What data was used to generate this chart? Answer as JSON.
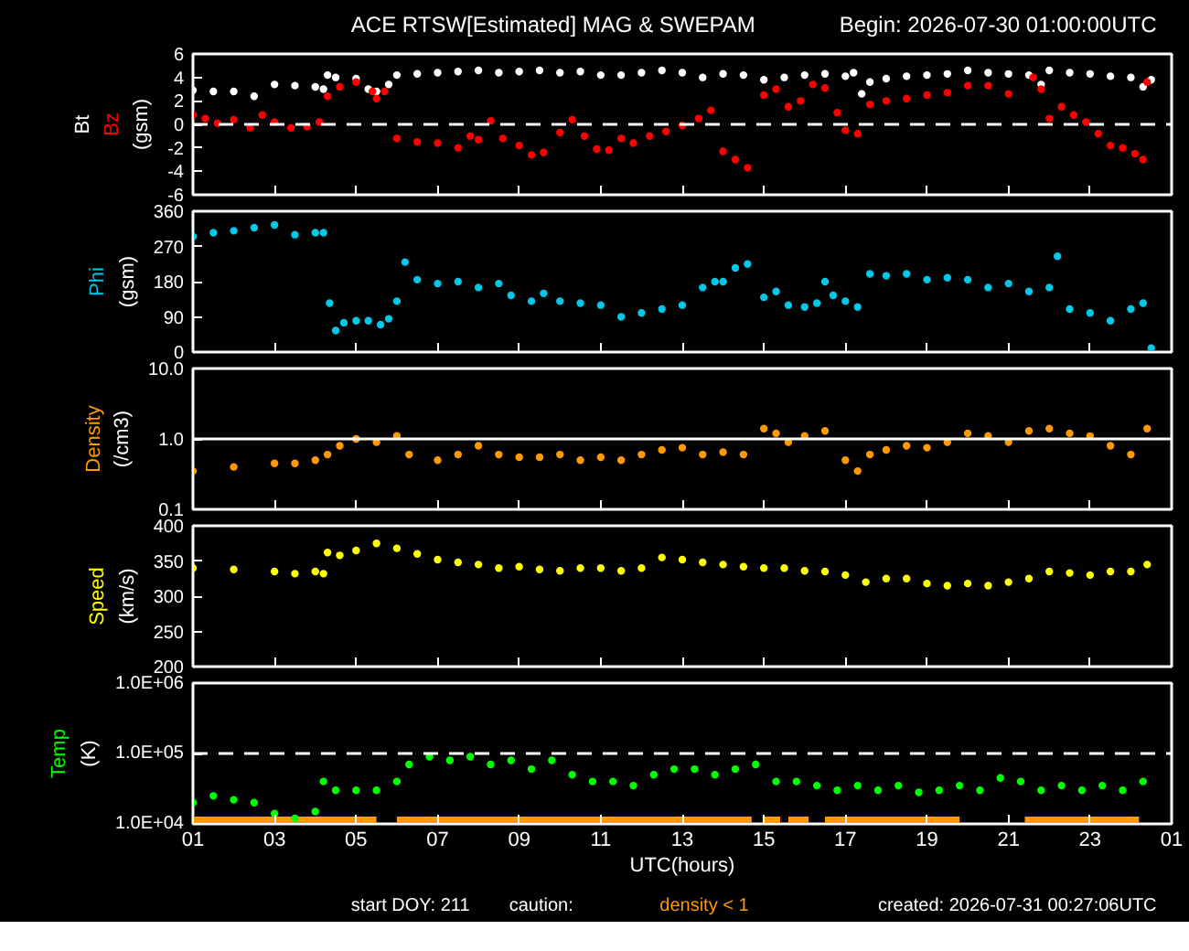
{
  "chart_data": [
    {
      "type": "scatter",
      "title": "ACE RTSW[Estimated] MAG & SWEPAM",
      "subtitle": "Begin: 2026-07-30 01:00:00UTC",
      "ylabel": "(gsm)",
      "marker": "circle",
      "tick_labels": "y",
      "xlim": [
        "2026-07-30T01:00",
        "2026-07-31T01:00"
      ],
      "xticks": [
        {
          "value": "2026-07-30T01:00",
          "label": null
        },
        {
          "value": "2026-07-30T03:00",
          "label": null
        },
        {
          "value": "2026-07-30T05:00",
          "label": null
        },
        {
          "value": "2026-07-30T07:00",
          "label": null
        },
        {
          "value": "2026-07-30T09:00",
          "label": null
        },
        {
          "value": "2026-07-30T11:00",
          "label": null
        },
        {
          "value": "2026-07-30T13:00",
          "label": null
        },
        {
          "value": "2026-07-30T15:00",
          "label": null
        },
        {
          "value": "2026-07-30T17:00",
          "label": null
        },
        {
          "value": "2026-07-30T19:00",
          "label": null
        },
        {
          "value": "2026-07-30T21:00",
          "label": null
        },
        {
          "value": "2026-07-30T23:00",
          "label": null
        },
        {
          "value": "2026-07-31T01:00",
          "label": null
        }
      ],
      "ylim": [
        -6,
        6
      ],
      "yticks": [
        -6,
        -4,
        -2,
        0,
        2,
        4,
        6
      ],
      "ref_lines": [
        {
          "axis": "y",
          "value": 0,
          "label": null,
          "color": "#ffffff",
          "line_style": "dashed"
        }
      ],
      "series": [
        {
          "name": "Bt",
          "color": "#ffffff",
          "x": [
            "2026-07-30T01:00",
            "2026-07-30T01:30",
            "2026-07-30T02:00",
            "2026-07-30T02:30",
            "2026-07-30T03:00",
            "2026-07-30T03:30",
            "2026-07-30T04:00",
            "2026-07-30T04:12",
            "2026-07-30T04:18",
            "2026-07-30T04:30",
            "2026-07-30T05:00",
            "2026-07-30T05:18",
            "2026-07-30T05:30",
            "2026-07-30T05:48",
            "2026-07-30T06:00",
            "2026-07-30T06:30",
            "2026-07-30T07:00",
            "2026-07-30T07:30",
            "2026-07-30T08:00",
            "2026-07-30T08:30",
            "2026-07-30T09:00",
            "2026-07-30T09:30",
            "2026-07-30T10:00",
            "2026-07-30T10:30",
            "2026-07-30T11:00",
            "2026-07-30T11:30",
            "2026-07-30T12:00",
            "2026-07-30T12:30",
            "2026-07-30T13:00",
            "2026-07-30T13:30",
            "2026-07-30T14:00",
            "2026-07-30T14:30",
            "2026-07-30T15:00",
            "2026-07-30T15:30",
            "2026-07-30T16:00",
            "2026-07-30T16:30",
            "2026-07-30T17:00",
            "2026-07-30T17:12",
            "2026-07-30T17:24",
            "2026-07-30T17:36",
            "2026-07-30T18:00",
            "2026-07-30T18:30",
            "2026-07-30T19:00",
            "2026-07-30T19:30",
            "2026-07-30T20:00",
            "2026-07-30T20:30",
            "2026-07-30T21:00",
            "2026-07-30T21:30",
            "2026-07-30T21:48",
            "2026-07-30T22:00",
            "2026-07-30T22:30",
            "2026-07-30T23:00",
            "2026-07-30T23:30",
            "2026-07-31T00:00",
            "2026-07-31T00:18",
            "2026-07-31T00:30"
          ],
          "values": [
            2.9,
            2.8,
            2.8,
            2.4,
            3.4,
            3.3,
            3.2,
            3.0,
            4.2,
            4.0,
            3.9,
            3.0,
            2.8,
            3.4,
            4.2,
            4.3,
            4.4,
            4.5,
            4.6,
            4.4,
            4.5,
            4.6,
            4.4,
            4.5,
            4.2,
            4.2,
            4.4,
            4.6,
            4.4,
            4.0,
            4.3,
            4.2,
            3.8,
            4.0,
            4.2,
            4.3,
            4.1,
            4.4,
            2.6,
            3.6,
            3.9,
            4.1,
            4.2,
            4.3,
            4.6,
            4.4,
            4.3,
            4.2,
            3.4,
            4.6,
            4.4,
            4.3,
            4.1,
            4.0,
            3.2,
            3.8
          ]
        },
        {
          "name": "Bz",
          "color": "#ff0000",
          "x": [
            "2026-07-30T01:00",
            "2026-07-30T01:18",
            "2026-07-30T01:36",
            "2026-07-30T02:00",
            "2026-07-30T02:24",
            "2026-07-30T02:42",
            "2026-07-30T03:00",
            "2026-07-30T03:24",
            "2026-07-30T03:48",
            "2026-07-30T04:06",
            "2026-07-30T04:18",
            "2026-07-30T04:36",
            "2026-07-30T05:00",
            "2026-07-30T05:24",
            "2026-07-30T05:30",
            "2026-07-30T05:42",
            "2026-07-30T06:00",
            "2026-07-30T06:30",
            "2026-07-30T07:00",
            "2026-07-30T07:30",
            "2026-07-30T07:48",
            "2026-07-30T08:00",
            "2026-07-30T08:18",
            "2026-07-30T08:36",
            "2026-07-30T09:00",
            "2026-07-30T09:18",
            "2026-07-30T09:36",
            "2026-07-30T10:00",
            "2026-07-30T10:18",
            "2026-07-30T10:36",
            "2026-07-30T10:54",
            "2026-07-30T11:12",
            "2026-07-30T11:30",
            "2026-07-30T11:48",
            "2026-07-30T12:12",
            "2026-07-30T12:36",
            "2026-07-30T13:00",
            "2026-07-30T13:24",
            "2026-07-30T13:42",
            "2026-07-30T14:00",
            "2026-07-30T14:18",
            "2026-07-30T14:36",
            "2026-07-30T15:00",
            "2026-07-30T15:18",
            "2026-07-30T15:36",
            "2026-07-30T15:54",
            "2026-07-30T16:12",
            "2026-07-30T16:30",
            "2026-07-30T16:48",
            "2026-07-30T17:00",
            "2026-07-30T17:18",
            "2026-07-30T17:36",
            "2026-07-30T18:00",
            "2026-07-30T18:30",
            "2026-07-30T19:00",
            "2026-07-30T19:30",
            "2026-07-30T20:00",
            "2026-07-30T20:30",
            "2026-07-30T21:00",
            "2026-07-30T21:36",
            "2026-07-30T21:48",
            "2026-07-30T22:00",
            "2026-07-30T22:18",
            "2026-07-30T22:36",
            "2026-07-30T22:54",
            "2026-07-30T23:12",
            "2026-07-30T23:30",
            "2026-07-30T23:48",
            "2026-07-31T00:06",
            "2026-07-31T00:18",
            "2026-07-31T00:24"
          ],
          "values": [
            0.8,
            0.5,
            0.1,
            0.4,
            -0.3,
            0.8,
            0.2,
            -0.3,
            -0.2,
            0.2,
            2.4,
            3.2,
            3.6,
            2.8,
            2.2,
            2.8,
            -1.2,
            -1.5,
            -1.6,
            -2.0,
            -1.0,
            -1.3,
            0.3,
            -1.2,
            -1.8,
            -2.6,
            -2.4,
            -0.7,
            0.4,
            -1.0,
            -2.1,
            -2.2,
            -1.2,
            -1.6,
            -1.0,
            -0.6,
            -0.1,
            0.5,
            1.2,
            -2.3,
            -3.0,
            -3.7,
            2.5,
            3.0,
            1.5,
            2.0,
            3.4,
            3.1,
            1.0,
            -0.5,
            -0.8,
            1.7,
            2.0,
            2.2,
            2.5,
            2.7,
            3.3,
            3.3,
            2.6,
            4.0,
            3.0,
            0.5,
            1.5,
            0.8,
            0.2,
            -0.8,
            -1.8,
            -2.0,
            -2.5,
            -3.0,
            3.6
          ]
        }
      ]
    },
    {
      "type": "scatter",
      "ylabel": "(gsm)",
      "marker": "circle",
      "tick_labels": "y",
      "xlim": [
        "2026-07-30T01:00",
        "2026-07-31T01:00"
      ],
      "xticks": [
        {
          "value": "2026-07-30T01:00",
          "label": null
        },
        {
          "value": "2026-07-30T03:00",
          "label": null
        },
        {
          "value": "2026-07-30T05:00",
          "label": null
        },
        {
          "value": "2026-07-30T07:00",
          "label": null
        },
        {
          "value": "2026-07-30T09:00",
          "label": null
        },
        {
          "value": "2026-07-30T11:00",
          "label": null
        },
        {
          "value": "2026-07-30T13:00",
          "label": null
        },
        {
          "value": "2026-07-30T15:00",
          "label": null
        },
        {
          "value": "2026-07-30T17:00",
          "label": null
        },
        {
          "value": "2026-07-30T19:00",
          "label": null
        },
        {
          "value": "2026-07-30T21:00",
          "label": null
        },
        {
          "value": "2026-07-30T23:00",
          "label": null
        },
        {
          "value": "2026-07-31T01:00",
          "label": null
        }
      ],
      "ylim": [
        0,
        360
      ],
      "yticks": [
        0,
        90,
        180,
        270,
        360
      ],
      "series": [
        {
          "name": "Phi",
          "color": "#00c8e6",
          "x": [
            "2026-07-30T01:00",
            "2026-07-30T01:30",
            "2026-07-30T02:00",
            "2026-07-30T02:30",
            "2026-07-30T03:00",
            "2026-07-30T03:30",
            "2026-07-30T04:00",
            "2026-07-30T04:12",
            "2026-07-30T04:21",
            "2026-07-30T04:30",
            "2026-07-30T04:42",
            "2026-07-30T05:00",
            "2026-07-30T05:18",
            "2026-07-30T05:36",
            "2026-07-30T05:48",
            "2026-07-30T06:00",
            "2026-07-30T06:12",
            "2026-07-30T06:30",
            "2026-07-30T07:00",
            "2026-07-30T07:30",
            "2026-07-30T08:00",
            "2026-07-30T08:30",
            "2026-07-30T08:48",
            "2026-07-30T09:18",
            "2026-07-30T09:36",
            "2026-07-30T10:00",
            "2026-07-30T10:30",
            "2026-07-30T11:00",
            "2026-07-30T11:30",
            "2026-07-30T12:00",
            "2026-07-30T12:30",
            "2026-07-30T13:00",
            "2026-07-30T13:30",
            "2026-07-30T13:48",
            "2026-07-30T14:00",
            "2026-07-30T14:18",
            "2026-07-30T14:36",
            "2026-07-30T15:00",
            "2026-07-30T15:18",
            "2026-07-30T15:36",
            "2026-07-30T16:00",
            "2026-07-30T16:18",
            "2026-07-30T16:30",
            "2026-07-30T16:42",
            "2026-07-30T17:00",
            "2026-07-30T17:18",
            "2026-07-30T17:36",
            "2026-07-30T18:00",
            "2026-07-30T18:30",
            "2026-07-30T19:00",
            "2026-07-30T19:30",
            "2026-07-30T20:00",
            "2026-07-30T20:30",
            "2026-07-30T21:00",
            "2026-07-30T21:30",
            "2026-07-30T22:00",
            "2026-07-30T22:12",
            "2026-07-30T22:30",
            "2026-07-30T23:00",
            "2026-07-30T23:30",
            "2026-07-31T00:00",
            "2026-07-31T00:18",
            "2026-07-31T00:30"
          ],
          "values": [
            295,
            305,
            310,
            318,
            325,
            300,
            305,
            305,
            125,
            55,
            75,
            80,
            80,
            70,
            85,
            130,
            230,
            185,
            175,
            180,
            165,
            175,
            145,
            130,
            150,
            130,
            125,
            120,
            90,
            100,
            110,
            120,
            165,
            180,
            180,
            215,
            225,
            140,
            155,
            120,
            115,
            125,
            180,
            145,
            130,
            115,
            200,
            195,
            200,
            185,
            190,
            185,
            165,
            175,
            155,
            165,
            245,
            110,
            100,
            80,
            110,
            125,
            10
          ]
        }
      ]
    },
    {
      "type": "scatter",
      "ylabel": "(/cm3)",
      "marker": "circle",
      "tick_labels": "y",
      "log": "y",
      "xlim": [
        "2026-07-30T01:00",
        "2026-07-31T01:00"
      ],
      "xticks": [
        {
          "value": "2026-07-30T01:00",
          "label": null
        },
        {
          "value": "2026-07-30T03:00",
          "label": null
        },
        {
          "value": "2026-07-30T05:00",
          "label": null
        },
        {
          "value": "2026-07-30T07:00",
          "label": null
        },
        {
          "value": "2026-07-30T09:00",
          "label": null
        },
        {
          "value": "2026-07-30T11:00",
          "label": null
        },
        {
          "value": "2026-07-30T13:00",
          "label": null
        },
        {
          "value": "2026-07-30T15:00",
          "label": null
        },
        {
          "value": "2026-07-30T17:00",
          "label": null
        },
        {
          "value": "2026-07-30T19:00",
          "label": null
        },
        {
          "value": "2026-07-30T21:00",
          "label": null
        },
        {
          "value": "2026-07-30T23:00",
          "label": null
        },
        {
          "value": "2026-07-31T01:00",
          "label": null
        }
      ],
      "ylim": [
        0.1,
        10
      ],
      "yticks": [
        {
          "value": 0.1,
          "label": "0.1"
        },
        {
          "value": 1,
          "label": "1.0"
        },
        {
          "value": 10,
          "label": "10.0"
        }
      ],
      "ref_lines": [
        {
          "axis": "y",
          "value": 1,
          "label": null,
          "color": "#ffffff",
          "line_style": "solid"
        }
      ],
      "series": [
        {
          "name": "Density",
          "color": "#ff9900",
          "x": [
            "2026-07-30T01:00",
            "2026-07-30T02:00",
            "2026-07-30T03:00",
            "2026-07-30T03:30",
            "2026-07-30T04:00",
            "2026-07-30T04:18",
            "2026-07-30T04:36",
            "2026-07-30T05:00",
            "2026-07-30T05:30",
            "2026-07-30T06:00",
            "2026-07-30T06:18",
            "2026-07-30T07:00",
            "2026-07-30T07:30",
            "2026-07-30T08:00",
            "2026-07-30T08:30",
            "2026-07-30T09:00",
            "2026-07-30T09:30",
            "2026-07-30T10:00",
            "2026-07-30T10:30",
            "2026-07-30T11:00",
            "2026-07-30T11:30",
            "2026-07-30T12:00",
            "2026-07-30T12:30",
            "2026-07-30T13:00",
            "2026-07-30T13:30",
            "2026-07-30T14:00",
            "2026-07-30T14:30",
            "2026-07-30T15:00",
            "2026-07-30T15:18",
            "2026-07-30T15:36",
            "2026-07-30T16:00",
            "2026-07-30T16:30",
            "2026-07-30T17:00",
            "2026-07-30T17:18",
            "2026-07-30T17:36",
            "2026-07-30T18:00",
            "2026-07-30T18:30",
            "2026-07-30T19:00",
            "2026-07-30T19:30",
            "2026-07-30T20:00",
            "2026-07-30T20:30",
            "2026-07-30T21:00",
            "2026-07-30T21:30",
            "2026-07-30T22:00",
            "2026-07-30T22:30",
            "2026-07-30T23:00",
            "2026-07-30T23:30",
            "2026-07-31T00:00",
            "2026-07-31T00:24"
          ],
          "values": [
            0.35,
            0.4,
            0.45,
            0.45,
            0.5,
            0.6,
            0.8,
            1.0,
            0.9,
            1.1,
            0.6,
            0.5,
            0.6,
            0.8,
            0.6,
            0.55,
            0.55,
            0.6,
            0.5,
            0.55,
            0.5,
            0.6,
            0.7,
            0.75,
            0.6,
            0.65,
            0.6,
            1.4,
            1.2,
            0.9,
            1.1,
            1.3,
            0.5,
            0.35,
            0.6,
            0.7,
            0.8,
            0.75,
            0.9,
            1.2,
            1.1,
            0.9,
            1.3,
            1.4,
            1.2,
            1.1,
            0.8,
            0.6,
            1.4
          ]
        }
      ]
    },
    {
      "type": "scatter",
      "ylabel": "(km/s)",
      "marker": "circle",
      "tick_labels": "y",
      "xlim": [
        "2026-07-30T01:00",
        "2026-07-31T01:00"
      ],
      "xticks": [
        {
          "value": "2026-07-30T01:00",
          "label": null
        },
        {
          "value": "2026-07-30T03:00",
          "label": null
        },
        {
          "value": "2026-07-30T05:00",
          "label": null
        },
        {
          "value": "2026-07-30T07:00",
          "label": null
        },
        {
          "value": "2026-07-30T09:00",
          "label": null
        },
        {
          "value": "2026-07-30T11:00",
          "label": null
        },
        {
          "value": "2026-07-30T13:00",
          "label": null
        },
        {
          "value": "2026-07-30T15:00",
          "label": null
        },
        {
          "value": "2026-07-30T17:00",
          "label": null
        },
        {
          "value": "2026-07-30T19:00",
          "label": null
        },
        {
          "value": "2026-07-30T21:00",
          "label": null
        },
        {
          "value": "2026-07-30T23:00",
          "label": null
        },
        {
          "value": "2026-07-31T01:00",
          "label": null
        }
      ],
      "ylim": [
        200,
        400
      ],
      "yticks": [
        200,
        250,
        300,
        350,
        400
      ],
      "series": [
        {
          "name": "Speed",
          "color": "#ffff00",
          "x": [
            "2026-07-30T01:00",
            "2026-07-30T02:00",
            "2026-07-30T03:00",
            "2026-07-30T03:30",
            "2026-07-30T04:00",
            "2026-07-30T04:12",
            "2026-07-30T04:18",
            "2026-07-30T04:36",
            "2026-07-30T05:00",
            "2026-07-30T05:30",
            "2026-07-30T06:00",
            "2026-07-30T06:30",
            "2026-07-30T07:00",
            "2026-07-30T07:30",
            "2026-07-30T08:00",
            "2026-07-30T08:30",
            "2026-07-30T09:00",
            "2026-07-30T09:30",
            "2026-07-30T10:00",
            "2026-07-30T10:30",
            "2026-07-30T11:00",
            "2026-07-30T11:30",
            "2026-07-30T12:00",
            "2026-07-30T12:30",
            "2026-07-30T13:00",
            "2026-07-30T13:30",
            "2026-07-30T14:00",
            "2026-07-30T14:30",
            "2026-07-30T15:00",
            "2026-07-30T15:30",
            "2026-07-30T16:00",
            "2026-07-30T16:30",
            "2026-07-30T17:00",
            "2026-07-30T17:30",
            "2026-07-30T18:00",
            "2026-07-30T18:30",
            "2026-07-30T19:00",
            "2026-07-30T19:30",
            "2026-07-30T20:00",
            "2026-07-30T20:30",
            "2026-07-30T21:00",
            "2026-07-30T21:30",
            "2026-07-30T22:00",
            "2026-07-30T22:30",
            "2026-07-30T23:00",
            "2026-07-30T23:30",
            "2026-07-31T00:00",
            "2026-07-31T00:24"
          ],
          "values": [
            340,
            338,
            335,
            332,
            335,
            332,
            362,
            358,
            365,
            375,
            368,
            360,
            352,
            348,
            345,
            340,
            342,
            338,
            336,
            340,
            340,
            336,
            340,
            355,
            352,
            348,
            345,
            342,
            340,
            340,
            336,
            335,
            330,
            320,
            325,
            325,
            318,
            315,
            318,
            315,
            320,
            325,
            335,
            333,
            330,
            335,
            335,
            345
          ]
        }
      ]
    },
    {
      "type": "scatter",
      "ylabel": "(K)",
      "xlabel": "UTC(hours)",
      "marker": "circle",
      "log": "y",
      "xlim": [
        "2026-07-30T01:00",
        "2026-07-31T01:00"
      ],
      "xticks": [
        {
          "value": "2026-07-30T01:00",
          "label": "01"
        },
        {
          "value": "2026-07-30T03:00",
          "label": "03"
        },
        {
          "value": "2026-07-30T05:00",
          "label": "05"
        },
        {
          "value": "2026-07-30T07:00",
          "label": "07"
        },
        {
          "value": "2026-07-30T09:00",
          "label": "09"
        },
        {
          "value": "2026-07-30T11:00",
          "label": "11"
        },
        {
          "value": "2026-07-30T13:00",
          "label": "13"
        },
        {
          "value": "2026-07-30T15:00",
          "label": "15"
        },
        {
          "value": "2026-07-30T17:00",
          "label": "17"
        },
        {
          "value": "2026-07-30T19:00",
          "label": "19"
        },
        {
          "value": "2026-07-30T21:00",
          "label": "21"
        },
        {
          "value": "2026-07-30T23:00",
          "label": "23"
        },
        {
          "value": "2026-07-31T01:00",
          "label": "01"
        }
      ],
      "ylim": [
        10000,
        1000000
      ],
      "yticks": [
        {
          "value": 10000,
          "label": "1.0E+04"
        },
        {
          "value": 100000,
          "label": "1.0E+05"
        },
        {
          "value": 1000000,
          "label": "1.0E+06"
        }
      ],
      "ref_lines": [
        {
          "axis": "y",
          "value": 100000,
          "label": null,
          "color": "#ffffff",
          "line_style": "dashed"
        }
      ],
      "bands": [
        {
          "axis": "x",
          "from": "2026-07-30T01:00",
          "to": "2026-07-30T05:30",
          "label": "density < 1",
          "color": "#ff9900"
        },
        {
          "axis": "x",
          "from": "2026-07-30T06:00",
          "to": "2026-07-30T14:42",
          "label": null,
          "color": "#ff9900"
        },
        {
          "axis": "x",
          "from": "2026-07-30T15:00",
          "to": "2026-07-30T15:24",
          "label": null,
          "color": "#ff9900"
        },
        {
          "axis": "x",
          "from": "2026-07-30T15:36",
          "to": "2026-07-30T16:06",
          "label": null,
          "color": "#ff9900"
        },
        {
          "axis": "x",
          "from": "2026-07-30T16:30",
          "to": "2026-07-30T19:48",
          "label": null,
          "color": "#ff9900"
        },
        {
          "axis": "x",
          "from": "2026-07-30T21:24",
          "to": "2026-07-31T00:12",
          "label": null,
          "color": "#ff9900"
        }
      ],
      "annotations": [
        "start DOY: 211",
        "caution:",
        "created: 2026-07-31 00:27:06UTC"
      ],
      "series": [
        {
          "name": "Temp",
          "color": "#00ff00",
          "x": [
            "2026-07-30T01:00",
            "2026-07-30T01:30",
            "2026-07-30T02:00",
            "2026-07-30T02:30",
            "2026-07-30T03:00",
            "2026-07-30T03:30",
            "2026-07-30T04:00",
            "2026-07-30T04:12",
            "2026-07-30T04:30",
            "2026-07-30T05:00",
            "2026-07-30T05:30",
            "2026-07-30T06:00",
            "2026-07-30T06:18",
            "2026-07-30T06:48",
            "2026-07-30T07:18",
            "2026-07-30T07:48",
            "2026-07-30T08:18",
            "2026-07-30T08:48",
            "2026-07-30T09:18",
            "2026-07-30T09:48",
            "2026-07-30T10:18",
            "2026-07-30T10:48",
            "2026-07-30T11:18",
            "2026-07-30T11:48",
            "2026-07-30T12:18",
            "2026-07-30T12:48",
            "2026-07-30T13:18",
            "2026-07-30T13:48",
            "2026-07-30T14:18",
            "2026-07-30T14:48",
            "2026-07-30T15:18",
            "2026-07-30T15:48",
            "2026-07-30T16:18",
            "2026-07-30T16:48",
            "2026-07-30T17:18",
            "2026-07-30T17:48",
            "2026-07-30T18:18",
            "2026-07-30T18:48",
            "2026-07-30T19:18",
            "2026-07-30T19:48",
            "2026-07-30T20:18",
            "2026-07-30T20:48",
            "2026-07-30T21:18",
            "2026-07-30T21:48",
            "2026-07-30T22:18",
            "2026-07-30T22:48",
            "2026-07-30T23:18",
            "2026-07-30T23:48",
            "2026-07-31T00:18"
          ],
          "values": [
            20000,
            25000,
            22000,
            20000,
            14000,
            12000,
            15000,
            40000,
            30000,
            30000,
            30000,
            40000,
            70000,
            90000,
            80000,
            90000,
            70000,
            80000,
            60000,
            80000,
            50000,
            40000,
            40000,
            35000,
            50000,
            60000,
            60000,
            50000,
            60000,
            70000,
            40000,
            40000,
            35000,
            30000,
            35000,
            30000,
            35000,
            28000,
            30000,
            35000,
            30000,
            45000,
            40000,
            30000,
            35000,
            30000,
            35000,
            30000,
            40000
          ]
        }
      ]
    }
  ]
}
